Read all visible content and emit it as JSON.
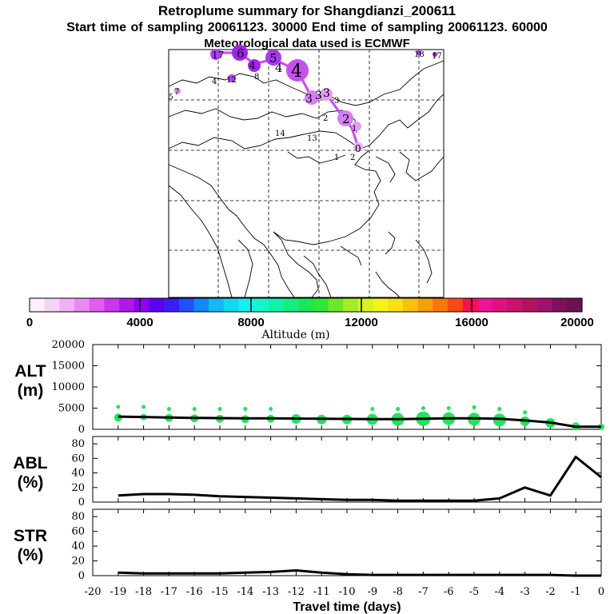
{
  "header": {
    "title": "Retroplume summary for Shangdianzi_200611",
    "sampling": "Start time of sampling 20061123. 30000     End time of sampling 20061123. 60000",
    "met": "Meteorological data used is ECMWF"
  },
  "map": {
    "plume_labels": [
      "17",
      "6",
      "5",
      "4",
      "4",
      "4",
      "3",
      "3",
      "3",
      "3",
      "2",
      "2",
      "1",
      "0",
      "18",
      "17",
      "14",
      "13",
      "12",
      "8",
      "7",
      "5",
      "4",
      "2",
      "1"
    ]
  },
  "colorbar": {
    "ticks": [
      "0",
      "4000",
      "8000",
      "12000",
      "16000",
      "20000"
    ],
    "label": "Altitude (m)",
    "colors": [
      "#fdeefd",
      "#f8d2f9",
      "#f1b0f5",
      "#ea8af1",
      "#e05df0",
      "#cc36ee",
      "#b018ee",
      "#9100f0",
      "#5c00f0",
      "#3c1df4",
      "#2050f6",
      "#1588f6",
      "#14b8f5",
      "#12d8f2",
      "#16f0ee",
      "#15f5cc",
      "#15f0a8",
      "#17ec80",
      "#15e85a",
      "#30e636",
      "#6ee62a",
      "#a6ec26",
      "#d4f224",
      "#f4f41c",
      "#f8e013",
      "#f8c00f",
      "#f89e0c",
      "#f8780e",
      "#f84a14",
      "#f21450",
      "#ea1496",
      "#e01080",
      "#ca126e",
      "#b4125e",
      "#9e1270",
      "#7c125a",
      "#6c1252"
    ]
  },
  "chart_data": [
    {
      "type": "line",
      "title": "ALT (m)",
      "ylabel_line1": "ALT",
      "ylabel_line2": "(m)",
      "ylim": [
        0,
        20000
      ],
      "yticks": [
        "20000",
        "15000",
        "10000",
        "5000",
        "0"
      ],
      "xlim": [
        -20,
        0
      ],
      "x": [
        -19,
        -18,
        -17,
        -16,
        -15,
        -14,
        -13,
        -12,
        -11,
        -10,
        -9,
        -8,
        -7,
        -6,
        -5,
        -4,
        -3,
        -2,
        -1,
        0
      ],
      "values": [
        3000,
        2900,
        2800,
        2700,
        2650,
        2600,
        2600,
        2550,
        2500,
        2450,
        2400,
        2400,
        2500,
        2600,
        2600,
        2500,
        2100,
        1600,
        600,
        600
      ],
      "scatter": {
        "x": [
          -19,
          -18,
          -17,
          -16,
          -15,
          -14,
          -13,
          -12,
          -11,
          -10,
          -9,
          -8,
          -7,
          -6,
          -5,
          -4,
          -3,
          -2,
          -1,
          0
        ],
        "y": [
          2800,
          2900,
          2700,
          2600,
          2500,
          2400,
          2500,
          2450,
          2300,
          2300,
          2350,
          2350,
          2500,
          2500,
          2400,
          2200,
          1900,
          1500,
          700,
          600
        ],
        "size": [
          5,
          4,
          5,
          5,
          5,
          5,
          5,
          6,
          6,
          6,
          7,
          8,
          9,
          8,
          8,
          8,
          6,
          6,
          5,
          4
        ],
        "top": [
          5300,
          5300,
          4800,
          4800,
          4800,
          4800,
          4800,
          0,
          0,
          0,
          4800,
          4800,
          5000,
          5000,
          5200,
          4800,
          4000,
          0,
          0,
          0
        ]
      },
      "dot_color": "#22e45a"
    },
    {
      "type": "line",
      "title": "ABL (%)",
      "ylabel_line1": "ABL",
      "ylabel_line2": "(%)",
      "ylim": [
        0,
        90
      ],
      "yticks": [
        "80",
        "60",
        "40",
        "20",
        "0"
      ],
      "xlim": [
        -20,
        0
      ],
      "x": [
        -19,
        -18,
        -17,
        -16,
        -15,
        -14,
        -13,
        -12,
        -11,
        -10,
        -9,
        -8,
        -7,
        -6,
        -5,
        -4,
        -3,
        -2,
        -1,
        0
      ],
      "values": [
        9,
        11,
        11,
        10,
        8,
        7,
        6,
        5,
        4,
        3,
        3,
        2,
        2,
        2,
        2,
        5,
        20,
        9,
        62,
        34
      ]
    },
    {
      "type": "line",
      "title": "STR (%)",
      "ylabel_line1": "STR",
      "ylabel_line2": "(%)",
      "ylim": [
        0,
        90
      ],
      "yticks": [
        "80",
        "60",
        "40",
        "20",
        "0"
      ],
      "xlim": [
        -20,
        0
      ],
      "x": [
        -19,
        -18,
        -17,
        -16,
        -15,
        -14,
        -13,
        -12,
        -11,
        -10,
        -9,
        -8,
        -7,
        -6,
        -5,
        -4,
        -3,
        -2,
        -1,
        0
      ],
      "values": [
        4,
        3,
        3,
        3,
        3,
        4,
        5,
        7,
        4,
        2,
        1,
        1,
        1,
        1,
        1,
        1,
        1,
        1,
        0,
        0
      ],
      "xticks": [
        "-20",
        "-19",
        "-18",
        "-17",
        "-16",
        "-15",
        "-14",
        "-13",
        "-12",
        "-11",
        "-10",
        "-9",
        "-8",
        "-7",
        "-6",
        "-5",
        "-4",
        "-3",
        "-2",
        "-1",
        "0"
      ],
      "xlabel": "Travel time (days)"
    }
  ]
}
